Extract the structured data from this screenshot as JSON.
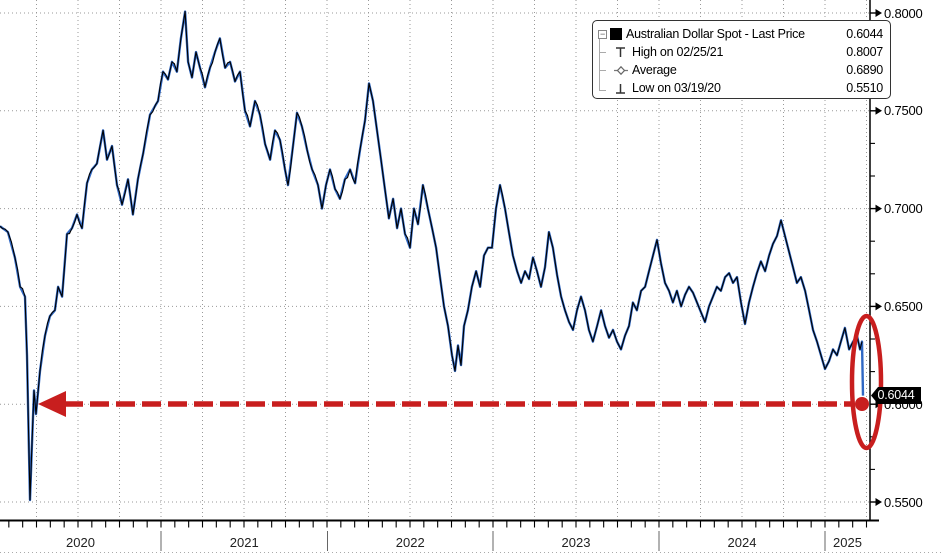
{
  "legend": {
    "expander_glyph": "−",
    "rows": [
      {
        "icon": "black-square-series-marker",
        "label": "Australian Dollar Spot - Last Price",
        "value": "0.6044"
      },
      {
        "icon": "high-tick-marker",
        "label": "High on 02/25/21",
        "value": "0.8007"
      },
      {
        "icon": "average-dash-diamond-marker",
        "label": "Average",
        "value": "0.6890"
      },
      {
        "icon": "low-tick-marker",
        "label": "Low on 03/19/20",
        "value": "0.5510"
      }
    ]
  },
  "axis": {
    "y_labels": [
      {
        "text": "0.8000",
        "value": 0.8
      },
      {
        "text": "0.7500",
        "value": 0.75
      },
      {
        "text": "0.7000",
        "value": 0.7
      },
      {
        "text": "0.6500",
        "value": 0.65
      },
      {
        "text": "0.6000",
        "value": 0.6
      },
      {
        "text": "0.5500",
        "value": 0.55
      }
    ],
    "x_labels": [
      "2020",
      "2021",
      "2022",
      "2023",
      "2024",
      "2025"
    ],
    "last_price_badge": "0.6044"
  },
  "colors": {
    "series_black": "#000000",
    "series_blue": "#3068c4",
    "annotation_red": "#c81e1e",
    "grid": "#999999",
    "axis": "#000000",
    "badge_bg": "#000000",
    "badge_text": "#ffffff"
  },
  "chart_data": {
    "type": "line",
    "title": "Australian Dollar Spot - Last Price",
    "x_unit": "decimal_year",
    "x_range": [
      2020.03,
      2025.23
    ],
    "ylim": [
      0.5435,
      0.807
    ],
    "y_gridlines": [
      0.8,
      0.75,
      0.7,
      0.65,
      0.6,
      0.55
    ],
    "grid": "dotted",
    "legend_position": "top-right",
    "stats": {
      "last_price": 0.6044,
      "high": {
        "date": "02/25/21",
        "value": 0.8007
      },
      "average": 0.689,
      "low": {
        "date": "03/19/20",
        "value": 0.551
      }
    },
    "annotations": [
      {
        "type": "dashed-arrow-left",
        "at_value": 0.6044,
        "meaning": "current price back at a level last seen in 2020"
      },
      {
        "type": "ellipse-highlight",
        "at": "latest price drop to 0.6044"
      }
    ],
    "series": [
      {
        "name": "Australian Dollar Spot - Last Price",
        "color": "#000000",
        "overlay_color": "#3068c4",
        "points": [
          [
            2020.03,
            0.691
          ],
          [
            2020.078,
            0.688
          ],
          [
            2020.12,
            0.675
          ],
          [
            2020.151,
            0.66
          ],
          [
            2020.181,
            0.655
          ],
          [
            2020.193,
            0.625
          ],
          [
            2020.205,
            0.575
          ],
          [
            2020.211,
            0.551
          ],
          [
            2020.223,
            0.58
          ],
          [
            2020.235,
            0.607
          ],
          [
            2020.247,
            0.595
          ],
          [
            2020.271,
            0.617
          ],
          [
            2020.301,
            0.635
          ],
          [
            2020.331,
            0.645
          ],
          [
            2020.361,
            0.648
          ],
          [
            2020.38,
            0.66
          ],
          [
            2020.404,
            0.655
          ],
          [
            2020.434,
            0.687
          ],
          [
            2020.464,
            0.69
          ],
          [
            2020.494,
            0.697
          ],
          [
            2020.524,
            0.69
          ],
          [
            2020.554,
            0.713
          ],
          [
            2020.584,
            0.72
          ],
          [
            2020.614,
            0.723
          ],
          [
            2020.651,
            0.74
          ],
          [
            2020.675,
            0.725
          ],
          [
            2020.705,
            0.732
          ],
          [
            2020.735,
            0.712
          ],
          [
            2020.765,
            0.702
          ],
          [
            2020.801,
            0.715
          ],
          [
            2020.831,
            0.697
          ],
          [
            2020.861,
            0.715
          ],
          [
            2020.892,
            0.728
          ],
          [
            2020.934,
            0.748
          ],
          [
            2020.982,
            0.755
          ],
          [
            2021.012,
            0.77
          ],
          [
            2021.042,
            0.766
          ],
          [
            2021.066,
            0.775
          ],
          [
            2021.096,
            0.77
          ],
          [
            2021.12,
            0.787
          ],
          [
            2021.145,
            0.8007
          ],
          [
            2021.163,
            0.775
          ],
          [
            2021.187,
            0.767
          ],
          [
            2021.211,
            0.78
          ],
          [
            2021.235,
            0.772
          ],
          [
            2021.265,
            0.762
          ],
          [
            2021.295,
            0.772
          ],
          [
            2021.325,
            0.78
          ],
          [
            2021.355,
            0.787
          ],
          [
            2021.386,
            0.772
          ],
          [
            2021.416,
            0.775
          ],
          [
            2021.446,
            0.765
          ],
          [
            2021.476,
            0.77
          ],
          [
            2021.506,
            0.75
          ],
          [
            2021.536,
            0.742
          ],
          [
            2021.566,
            0.755
          ],
          [
            2021.596,
            0.748
          ],
          [
            2021.627,
            0.733
          ],
          [
            2021.657,
            0.725
          ],
          [
            2021.687,
            0.74
          ],
          [
            2021.717,
            0.735
          ],
          [
            2021.747,
            0.72
          ],
          [
            2021.765,
            0.712
          ],
          [
            2021.795,
            0.732
          ],
          [
            2021.819,
            0.749
          ],
          [
            2021.849,
            0.742
          ],
          [
            2021.88,
            0.73
          ],
          [
            2021.91,
            0.72
          ],
          [
            2021.946,
            0.712
          ],
          [
            2021.97,
            0.7
          ],
          [
            2021.994,
            0.712
          ],
          [
            2022.018,
            0.72
          ],
          [
            2022.048,
            0.71
          ],
          [
            2022.078,
            0.705
          ],
          [
            2022.108,
            0.715
          ],
          [
            2022.139,
            0.72
          ],
          [
            2022.169,
            0.713
          ],
          [
            2022.199,
            0.73
          ],
          [
            2022.229,
            0.745
          ],
          [
            2022.253,
            0.764
          ],
          [
            2022.277,
            0.755
          ],
          [
            2022.301,
            0.74
          ],
          [
            2022.325,
            0.725
          ],
          [
            2022.349,
            0.71
          ],
          [
            2022.373,
            0.695
          ],
          [
            2022.398,
            0.705
          ],
          [
            2022.422,
            0.69
          ],
          [
            2022.446,
            0.7
          ],
          [
            2022.47,
            0.687
          ],
          [
            2022.5,
            0.68
          ],
          [
            2022.524,
            0.7
          ],
          [
            2022.548,
            0.692
          ],
          [
            2022.578,
            0.712
          ],
          [
            2022.608,
            0.7
          ],
          [
            2022.633,
            0.69
          ],
          [
            2022.657,
            0.68
          ],
          [
            2022.681,
            0.665
          ],
          [
            2022.705,
            0.65
          ],
          [
            2022.729,
            0.64
          ],
          [
            2022.753,
            0.625
          ],
          [
            2022.771,
            0.617
          ],
          [
            2022.789,
            0.63
          ],
          [
            2022.807,
            0.62
          ],
          [
            2022.825,
            0.64
          ],
          [
            2022.849,
            0.648
          ],
          [
            2022.873,
            0.66
          ],
          [
            2022.898,
            0.668
          ],
          [
            2022.922,
            0.66
          ],
          [
            2022.946,
            0.676
          ],
          [
            2022.97,
            0.68
          ],
          [
            2022.994,
            0.68
          ],
          [
            2023.018,
            0.7
          ],
          [
            2023.042,
            0.712
          ],
          [
            2023.072,
            0.7
          ],
          [
            2023.096,
            0.688
          ],
          [
            2023.12,
            0.676
          ],
          [
            2023.145,
            0.668
          ],
          [
            2023.169,
            0.662
          ],
          [
            2023.193,
            0.668
          ],
          [
            2023.217,
            0.664
          ],
          [
            2023.241,
            0.675
          ],
          [
            2023.265,
            0.668
          ],
          [
            2023.289,
            0.66
          ],
          [
            2023.313,
            0.67
          ],
          [
            2023.337,
            0.688
          ],
          [
            2023.361,
            0.68
          ],
          [
            2023.386,
            0.666
          ],
          [
            2023.41,
            0.655
          ],
          [
            2023.434,
            0.648
          ],
          [
            2023.458,
            0.642
          ],
          [
            2023.482,
            0.638
          ],
          [
            2023.506,
            0.648
          ],
          [
            2023.53,
            0.655
          ],
          [
            2023.554,
            0.648
          ],
          [
            2023.578,
            0.638
          ],
          [
            2023.602,
            0.632
          ],
          [
            2023.627,
            0.64
          ],
          [
            2023.651,
            0.648
          ],
          [
            2023.675,
            0.64
          ],
          [
            2023.699,
            0.634
          ],
          [
            2023.723,
            0.638
          ],
          [
            2023.747,
            0.632
          ],
          [
            2023.771,
            0.628
          ],
          [
            2023.795,
            0.635
          ],
          [
            2023.819,
            0.64
          ],
          [
            2023.843,
            0.652
          ],
          [
            2023.867,
            0.648
          ],
          [
            2023.892,
            0.658
          ],
          [
            2023.916,
            0.66
          ],
          [
            2023.94,
            0.668
          ],
          [
            2023.964,
            0.676
          ],
          [
            2023.988,
            0.684
          ],
          [
            2024.012,
            0.672
          ],
          [
            2024.036,
            0.662
          ],
          [
            2024.06,
            0.658
          ],
          [
            2024.084,
            0.652
          ],
          [
            2024.108,
            0.658
          ],
          [
            2024.133,
            0.65
          ],
          [
            2024.157,
            0.656
          ],
          [
            2024.181,
            0.66
          ],
          [
            2024.205,
            0.657
          ],
          [
            2024.229,
            0.652
          ],
          [
            2024.253,
            0.647
          ],
          [
            2024.277,
            0.642
          ],
          [
            2024.301,
            0.65
          ],
          [
            2024.325,
            0.655
          ],
          [
            2024.349,
            0.66
          ],
          [
            2024.373,
            0.658
          ],
          [
            2024.398,
            0.665
          ],
          [
            2024.422,
            0.667
          ],
          [
            2024.446,
            0.662
          ],
          [
            2024.47,
            0.665
          ],
          [
            2024.494,
            0.652
          ],
          [
            2024.518,
            0.641
          ],
          [
            2024.542,
            0.652
          ],
          [
            2024.566,
            0.66
          ],
          [
            2024.59,
            0.667
          ],
          [
            2024.614,
            0.673
          ],
          [
            2024.639,
            0.668
          ],
          [
            2024.663,
            0.676
          ],
          [
            2024.687,
            0.682
          ],
          [
            2024.711,
            0.686
          ],
          [
            2024.735,
            0.694
          ],
          [
            2024.759,
            0.686
          ],
          [
            2024.783,
            0.678
          ],
          [
            2024.807,
            0.67
          ],
          [
            2024.831,
            0.662
          ],
          [
            2024.855,
            0.665
          ],
          [
            2024.88,
            0.658
          ],
          [
            2024.904,
            0.648
          ],
          [
            2024.928,
            0.638
          ],
          [
            2024.952,
            0.632
          ],
          [
            2024.976,
            0.625
          ],
          [
            2025.0,
            0.618
          ],
          [
            2025.024,
            0.622
          ],
          [
            2025.048,
            0.628
          ],
          [
            2025.072,
            0.625
          ],
          [
            2025.096,
            0.632
          ],
          [
            2025.12,
            0.639
          ],
          [
            2025.145,
            0.628
          ],
          [
            2025.169,
            0.632
          ],
          [
            2025.193,
            0.635
          ],
          [
            2025.211,
            0.628
          ],
          [
            2025.223,
            0.632
          ],
          [
            2025.229,
            0.6044
          ]
        ]
      }
    ]
  }
}
